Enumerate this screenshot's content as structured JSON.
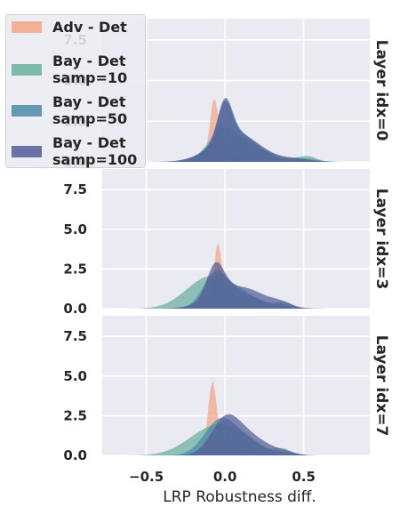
{
  "chart_data": {
    "type": "area",
    "xlabel": "LRP Robustness diff.",
    "xlim": [
      -0.78,
      0.92
    ],
    "x_ticks": [
      {
        "v": -0.5,
        "label": "−0.5"
      },
      {
        "v": 0.0,
        "label": "0.0"
      },
      {
        "v": 0.5,
        "label": "0.5"
      }
    ],
    "ylim": [
      0,
      8.8
    ],
    "y_ticks": [
      {
        "v": 0,
        "label": "0.0"
      },
      {
        "v": 2.5,
        "label": "2.5"
      },
      {
        "v": 5,
        "label": "5.0"
      },
      {
        "v": 7.5,
        "label": "7.5"
      }
    ],
    "grid": true,
    "legend_position": "top-left",
    "series": [
      {
        "name": "Adv - Det",
        "color": "#f4a586",
        "legend": "Adv - Det"
      },
      {
        "name": "Bay - Det samp=10",
        "color": "#6aaf9e",
        "legend": "Bay - Det\nsamp=10"
      },
      {
        "name": "Bay - Det samp=50",
        "color": "#4a8aa8",
        "legend": "Bay - Det\nsamp=50"
      },
      {
        "name": "Bay - Det samp=100",
        "color": "#545b96",
        "legend": "Bay - Det\nsamp=100"
      }
    ],
    "panels": [
      {
        "label": "Layer idx=0",
        "densities": [
          {
            "series": "Adv - Det",
            "components": [
              [
                -0.07,
                0.025,
                0.175
              ],
              [
                -0.04,
                0.06,
                0.175
              ],
              [
                0.02,
                0.09,
                0.014
              ]
            ]
          },
          {
            "series": "Bay - Det samp=10",
            "components": [
              [
                -0.02,
                0.09,
                0.37
              ],
              [
                0.15,
                0.14,
                0.34
              ],
              [
                0.52,
                0.06,
                0.05
              ]
            ]
          },
          {
            "series": "Bay - Det samp=50",
            "components": [
              [
                0.0,
                0.045,
                0.25
              ],
              [
                0.06,
                0.14,
                0.66
              ],
              [
                0.5,
                0.08,
                0.04
              ]
            ]
          },
          {
            "series": "Bay - Det samp=100",
            "components": [
              [
                0.0,
                0.045,
                0.25
              ],
              [
                0.07,
                0.15,
                0.66
              ],
              [
                0.45,
                0.09,
                0.04
              ]
            ]
          }
        ]
      },
      {
        "label": "Layer idx=3",
        "densities": [
          {
            "series": "Adv - Det",
            "components": [
              [
                -0.045,
                0.022,
                0.165
              ],
              [
                -0.03,
                0.06,
                0.17
              ],
              [
                0.03,
                0.09,
                0.01
              ]
            ]
          },
          {
            "series": "Bay - Det samp=10",
            "components": [
              [
                -0.12,
                0.14,
                0.6
              ],
              [
                0.08,
                0.14,
                0.29
              ],
              [
                0.38,
                0.05,
                0.045
              ]
            ]
          },
          {
            "series": "Bay - Det samp=50",
            "components": [
              [
                -0.06,
                0.08,
                0.39
              ],
              [
                0.1,
                0.13,
                0.29
              ],
              [
                0.37,
                0.06,
                0.025
              ]
            ]
          },
          {
            "series": "Bay - Det samp=100",
            "components": [
              [
                -0.06,
                0.055,
                0.28
              ],
              [
                0.09,
                0.16,
                0.55
              ],
              [
                0.36,
                0.06,
                0.03
              ]
            ]
          }
        ]
      },
      {
        "label": "Layer idx=7",
        "densities": [
          {
            "series": "Adv - Det",
            "components": [
              [
                -0.08,
                0.026,
                0.25
              ],
              [
                -0.05,
                0.07,
                0.15
              ],
              [
                0.08,
                0.07,
                0.03
              ]
            ]
          },
          {
            "series": "Bay - Det samp=10",
            "components": [
              [
                -0.1,
                0.15,
                0.55
              ],
              [
                0.08,
                0.13,
                0.32
              ],
              [
                0.37,
                0.05,
                0.045
              ]
            ]
          },
          {
            "series": "Bay - Det samp=50",
            "components": [
              [
                -0.03,
                0.1,
                0.55
              ],
              [
                0.15,
                0.1,
                0.2
              ],
              [
                0.38,
                0.07,
                0.025
              ]
            ]
          },
          {
            "series": "Bay - Det samp=100",
            "components": [
              [
                0.0,
                0.09,
                0.45
              ],
              [
                0.15,
                0.12,
                0.35
              ],
              [
                0.38,
                0.07,
                0.03
              ]
            ]
          }
        ]
      }
    ]
  }
}
